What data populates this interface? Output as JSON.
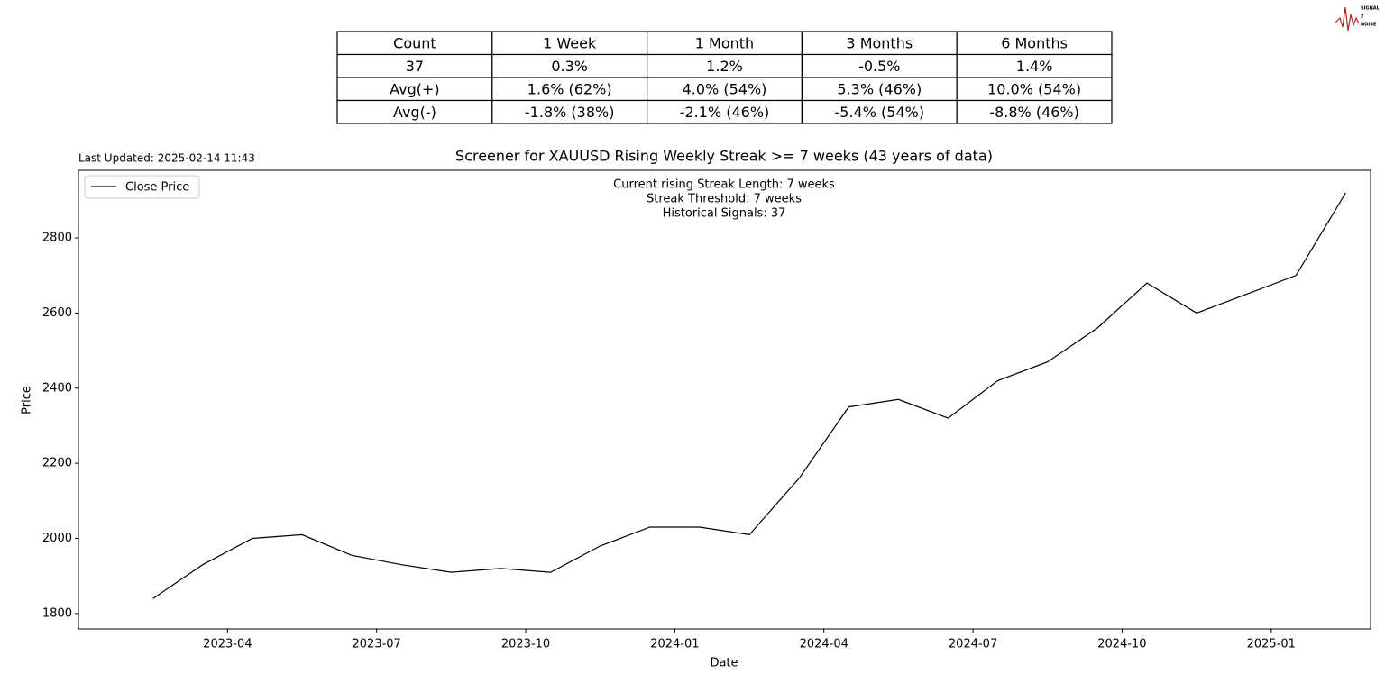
{
  "logo": [
    "SIGNAL",
    "2",
    "NOISE"
  ],
  "table": {
    "header": [
      "Count",
      "1 Week",
      "1 Month",
      "3 Months",
      "6 Months"
    ],
    "rows": [
      [
        "37",
        "0.3%",
        "1.2%",
        "-0.5%",
        "1.4%"
      ],
      [
        "Avg(+)",
        "1.6% (62%)",
        "4.0% (54%)",
        "5.3% (46%)",
        "10.0% (54%)"
      ],
      [
        "Avg(-)",
        "-1.8% (38%)",
        "-2.1% (46%)",
        "-5.4% (54%)",
        "-8.8% (46%)"
      ]
    ]
  },
  "chart_data": {
    "type": "line",
    "title": "Screener for XAUUSD Rising Weekly Streak >= 7 weeks (43 years of data)",
    "note": "Last Updated: 2025-02-14 11:43",
    "annotations": [
      "Current rising Streak Length: 7 weeks",
      "Streak Threshold: 7 weeks",
      "Historical Signals: 37"
    ],
    "xlabel": "Date",
    "ylabel": "Price",
    "x": [
      "2023-02",
      "2023-03",
      "2023-04",
      "2023-05",
      "2023-06",
      "2023-07",
      "2023-08",
      "2023-09",
      "2023-10",
      "2023-11",
      "2023-12",
      "2024-01",
      "2024-02",
      "2024-03",
      "2024-04",
      "2024-05",
      "2024-06",
      "2024-07",
      "2024-08",
      "2024-09",
      "2024-10",
      "2024-11",
      "2024-12",
      "2025-01",
      "2025-02"
    ],
    "series": [
      {
        "name": "Close Price",
        "color": "#000000",
        "values": [
          1840,
          1930,
          2000,
          2010,
          1955,
          1930,
          1910,
          1920,
          1910,
          1980,
          2030,
          2030,
          2010,
          2160,
          2350,
          2370,
          2320,
          2420,
          2470,
          2560,
          2680,
          2600,
          2650,
          2700,
          2920
        ]
      }
    ],
    "xlim": [
      "2023-01",
      "2025-03"
    ],
    "ylim": [
      1759,
      2980
    ],
    "xticks": [
      "2023-04",
      "2023-07",
      "2023-10",
      "2024-01",
      "2024-04",
      "2024-07",
      "2024-10",
      "2025-01"
    ],
    "yticks": [
      1800,
      2000,
      2200,
      2400,
      2600,
      2800
    ],
    "legend": "upper left"
  }
}
